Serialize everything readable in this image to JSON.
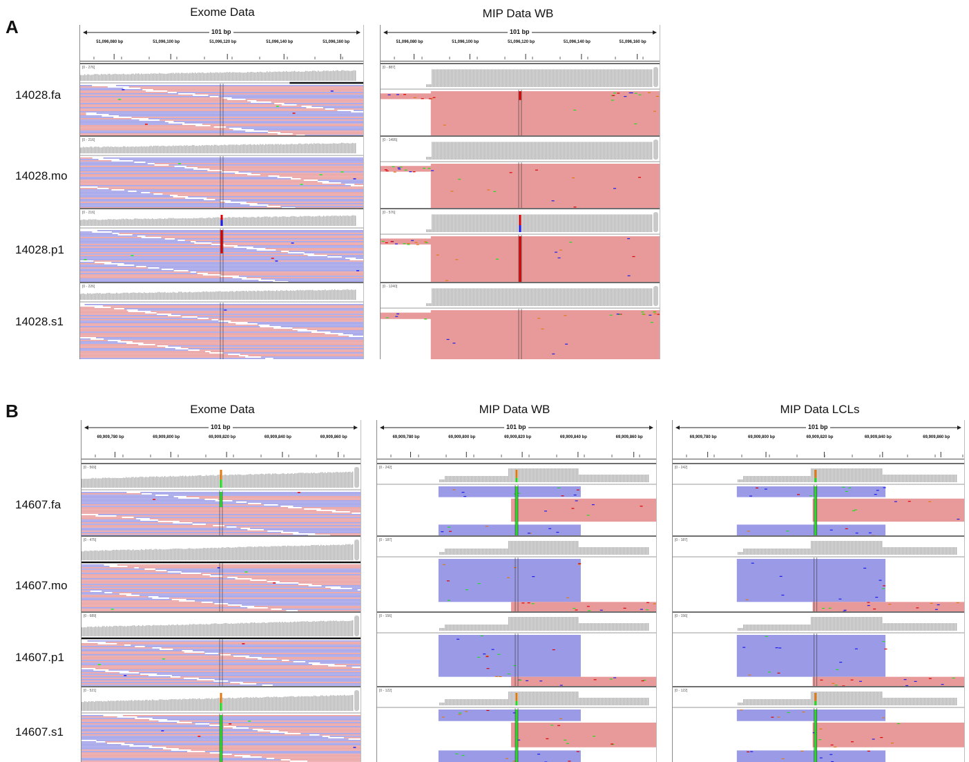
{
  "panels": {
    "A": {
      "letter": "A",
      "columns": [
        {
          "title": "Exome Data",
          "ruler": {
            "span": "101 bp",
            "ticks": [
              "51,096,080 bp",
              "51,096,100 bp",
              "51,096,120 bp",
              "51,096,140 bp",
              "51,096,160 bp"
            ]
          }
        },
        {
          "title": "MIP Data WB",
          "ruler": {
            "span": "101 bp",
            "ticks": [
              "51,096,080 bp",
              "51,096,100 bp",
              "51,096,120 bp",
              "51,096,140 bp",
              "51,096,160 bp"
            ]
          }
        }
      ],
      "samples": [
        {
          "name": "14028.fa",
          "ranges": [
            "[0 - 276]",
            "[0 - 887]"
          ]
        },
        {
          "name": "14028.mo",
          "ranges": [
            "[0 - 216]",
            "[0 - 1495]"
          ]
        },
        {
          "name": "14028.p1",
          "ranges": [
            "[0 - 216]",
            "[0 - 576]"
          ]
        },
        {
          "name": "14028.s1",
          "ranges": [
            "[0 - 226]",
            "[0 - 1240]"
          ]
        }
      ]
    },
    "B": {
      "letter": "B",
      "columns": [
        {
          "title": "Exome Data",
          "ruler": {
            "span": "101 bp",
            "ticks": [
              "69,909,780 bp",
              "69,909,800 bp",
              "69,909,820 bp",
              "69,909,840 bp",
              "69,909,860 bp"
            ]
          }
        },
        {
          "title": "MIP Data WB",
          "ruler": {
            "span": "101 bp",
            "ticks": [
              "69,909,780 bp",
              "69,909,800 bp",
              "69,909,820 bp",
              "69,909,840 bp",
              "69,909,860 bp"
            ]
          }
        },
        {
          "title": "MIP Data LCLs",
          "ruler": {
            "span": "101 bp",
            "ticks": [
              "69,909,780 bp",
              "69,909,800 bp",
              "69,909,820 bp",
              "69,909,840 bp",
              "69,909,860 bp"
            ]
          }
        }
      ],
      "samples": [
        {
          "name": "14607.fa",
          "ranges": [
            "[0 - 569]",
            "[0 - 242]",
            "[0 - 242]"
          ]
        },
        {
          "name": "14607.mo",
          "ranges": [
            "[0 - 475]",
            "[0 - 187]",
            "[0 - 187]"
          ]
        },
        {
          "name": "14607.p1",
          "ranges": [
            "[0 - 689]",
            "[0 - 156]",
            "[0 - 156]"
          ]
        },
        {
          "name": "14607.s1",
          "ranges": [
            "[0 - 521]",
            "[0 - 122]",
            "[0 - 122]"
          ]
        }
      ]
    }
  },
  "colors": {
    "coverage": "#b3b3b3",
    "read_forward": "#e89a9a",
    "read_reverse": "#9a9ae6",
    "variant_ref_red": "#dd0000",
    "variant_alt_blue": "#1a1aee",
    "variant_green": "#22dd22",
    "variant_orange": "#e07a10"
  }
}
